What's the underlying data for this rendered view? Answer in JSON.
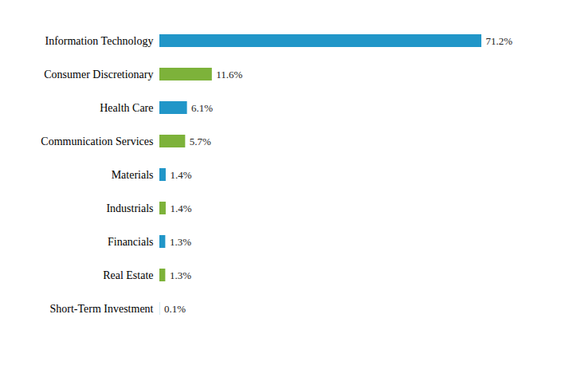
{
  "chart_data": {
    "type": "bar",
    "orientation": "horizontal",
    "categories": [
      "Information Technology",
      "Consumer Discretionary",
      "Health Care",
      "Communication Services",
      "Materials",
      "Industrials",
      "Financials",
      "Real Estate",
      "Short-Term Investment"
    ],
    "values": [
      71.2,
      11.6,
      6.1,
      5.7,
      1.4,
      1.4,
      1.3,
      1.3,
      0.1
    ],
    "value_labels": [
      "71.2%",
      "11.6%",
      "6.1%",
      "5.7%",
      "1.4%",
      "1.4%",
      "1.3%",
      "1.3%",
      "0.1%"
    ],
    "colors": [
      "#2196C8",
      "#7DB23A",
      "#2196C8",
      "#7DB23A",
      "#2196C8",
      "#7DB23A",
      "#2196C8",
      "#7DB23A",
      "#B0D8E8"
    ],
    "xlim": [
      0,
      80
    ],
    "data_labels": true,
    "tick_labels": "y",
    "grid": false
  }
}
